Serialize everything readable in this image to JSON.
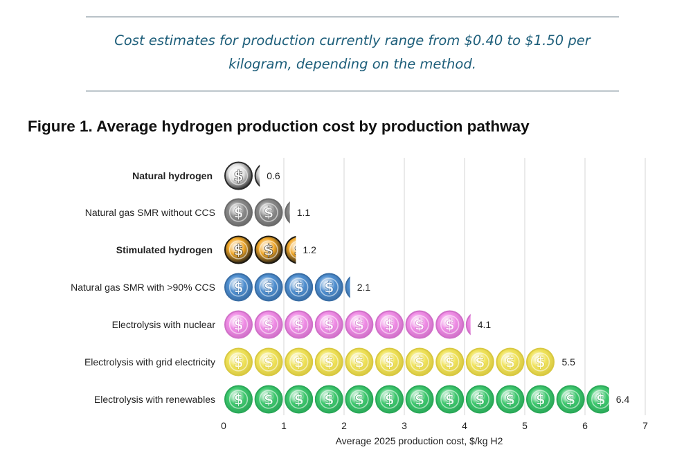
{
  "quote": {
    "line1": "Cost estimates for production currently range from $0.40 to $1.50 per",
    "line2": "kilogram, depending on the method."
  },
  "figure_title": "Figure 1. Average hydrogen production cost by production pathway",
  "chart_data": {
    "type": "bar",
    "orientation": "horizontal",
    "title": "Figure 1. Average hydrogen production cost by production pathway",
    "xlabel": "Average 2025 production cost, $/kg H2",
    "ylabel": "",
    "xlim": [
      0,
      7
    ],
    "xticks": [
      "0",
      "1",
      "2",
      "3",
      "4",
      "5",
      "6",
      "7"
    ],
    "grid": true,
    "categories": [
      "Natural hydrogen",
      "Natural gas SMR without CCS",
      "Stimulated hydrogen",
      "Natural gas SMR with >90% CCS",
      "Electrolysis with nuclear",
      "Electrolysis with grid electricity",
      "Electrolysis with renewables"
    ],
    "bold_categories": [
      "Natural hydrogen",
      "Stimulated hydrogen"
    ],
    "values": [
      0.6,
      1.1,
      1.2,
      2.1,
      4.1,
      5.5,
      6.4
    ],
    "value_labels": [
      "0.6",
      "1.1",
      "1.2",
      "2.1",
      "4.1",
      "5.5",
      "6.4"
    ],
    "coin_colors": [
      "#e2e2e2",
      "#8a8a8a",
      "#f2a92a",
      "#4f8fd0",
      "#f08ee6",
      "#f0e35c",
      "#3ec86e"
    ],
    "coin_edge_colors": [
      "#2a2a2a",
      "#6a6a6a",
      "#1e1a12",
      "#3a6ea5",
      "#d070c8",
      "#d8c840",
      "#2aa858"
    ]
  }
}
